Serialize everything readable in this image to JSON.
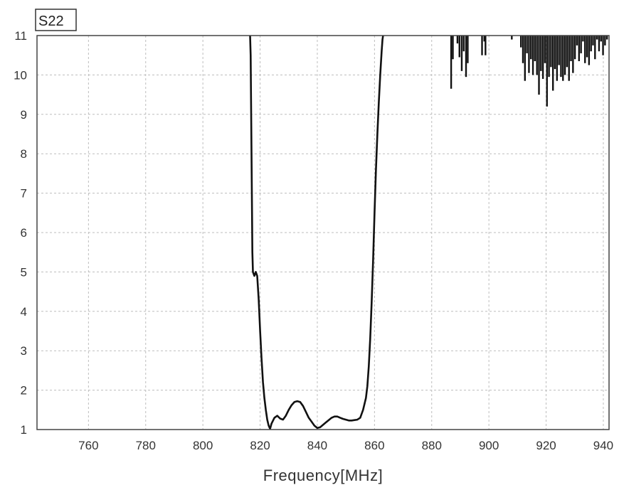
{
  "chart_data": {
    "type": "line",
    "title": "S22",
    "xlabel": "Frequency[MHz]",
    "ylabel": "",
    "xlim": [
      742,
      942
    ],
    "ylim": [
      1,
      11
    ],
    "xticks": [
      760,
      780,
      800,
      820,
      840,
      860,
      880,
      900,
      920,
      940
    ],
    "yticks": [
      1,
      2,
      3,
      4,
      5,
      6,
      7,
      8,
      9,
      10,
      11
    ],
    "grid": true,
    "series": [
      {
        "color": "#111111",
        "x": [
          816.5,
          816.7,
          817.0,
          817.3,
          817.5,
          818.0,
          818.5,
          819.0,
          819.5,
          820.0,
          820.5,
          821.0,
          821.5,
          822.0,
          822.5,
          823.0,
          823.5,
          824.0,
          825.0,
          826.0,
          827.0,
          828.0,
          829.0,
          830.0,
          831.0,
          832.0,
          833.0,
          834.0,
          835.0,
          836.0,
          837.0,
          838.0,
          839.0,
          840.0,
          841.0,
          842.0,
          843.0,
          844.0,
          845.0,
          846.0,
          847.0,
          848.0,
          849.0,
          850.0,
          851.0,
          852.0,
          853.0,
          854.0,
          855.0,
          856.0,
          857.0,
          857.5,
          858.0,
          858.5,
          859.0,
          859.5,
          860.0,
          860.5,
          861.0,
          861.5,
          862.0,
          862.5,
          862.8,
          863.0
        ],
        "y": [
          11.0,
          10.5,
          8.0,
          5.5,
          5.0,
          4.9,
          5.0,
          4.9,
          4.3,
          3.5,
          2.8,
          2.2,
          1.8,
          1.5,
          1.25,
          1.1,
          1.02,
          1.15,
          1.3,
          1.35,
          1.28,
          1.25,
          1.35,
          1.5,
          1.62,
          1.7,
          1.72,
          1.7,
          1.6,
          1.45,
          1.3,
          1.2,
          1.1,
          1.04,
          1.06,
          1.12,
          1.18,
          1.24,
          1.3,
          1.33,
          1.33,
          1.3,
          1.27,
          1.25,
          1.23,
          1.23,
          1.24,
          1.25,
          1.3,
          1.5,
          1.8,
          2.1,
          2.6,
          3.3,
          4.2,
          5.3,
          6.5,
          7.6,
          8.5,
          9.3,
          10.0,
          10.6,
          10.9,
          11.0
        ]
      }
    ],
    "spikes": [
      {
        "x": 886.8,
        "y": 9.65
      },
      {
        "x": 887.4,
        "y": 10.4
      },
      {
        "x": 889.0,
        "y": 10.8
      },
      {
        "x": 889.7,
        "y": 10.45
      },
      {
        "x": 890.5,
        "y": 10.1
      },
      {
        "x": 891.2,
        "y": 10.6
      },
      {
        "x": 892.0,
        "y": 9.95
      },
      {
        "x": 892.6,
        "y": 10.3
      },
      {
        "x": 897.6,
        "y": 10.5
      },
      {
        "x": 898.4,
        "y": 10.85
      },
      {
        "x": 898.8,
        "y": 10.5
      },
      {
        "x": 908.0,
        "y": 10.9
      },
      {
        "x": 911.2,
        "y": 10.7
      },
      {
        "x": 911.9,
        "y": 10.3
      },
      {
        "x": 912.6,
        "y": 9.85
      },
      {
        "x": 913.3,
        "y": 10.55
      },
      {
        "x": 914.0,
        "y": 10.05
      },
      {
        "x": 914.7,
        "y": 10.4
      },
      {
        "x": 915.4,
        "y": 10.0
      },
      {
        "x": 916.1,
        "y": 10.35
      },
      {
        "x": 916.8,
        "y": 10.0
      },
      {
        "x": 917.5,
        "y": 9.5
      },
      {
        "x": 918.2,
        "y": 10.1
      },
      {
        "x": 918.9,
        "y": 9.9
      },
      {
        "x": 919.6,
        "y": 10.3
      },
      {
        "x": 920.3,
        "y": 9.2
      },
      {
        "x": 921.0,
        "y": 9.95
      },
      {
        "x": 921.7,
        "y": 10.2
      },
      {
        "x": 922.4,
        "y": 9.6
      },
      {
        "x": 923.1,
        "y": 10.15
      },
      {
        "x": 923.8,
        "y": 9.85
      },
      {
        "x": 924.5,
        "y": 10.25
      },
      {
        "x": 925.2,
        "y": 9.95
      },
      {
        "x": 925.9,
        "y": 9.85
      },
      {
        "x": 926.6,
        "y": 10.0
      },
      {
        "x": 927.3,
        "y": 10.2
      },
      {
        "x": 928.0,
        "y": 9.85
      },
      {
        "x": 928.7,
        "y": 10.35
      },
      {
        "x": 929.4,
        "y": 10.05
      },
      {
        "x": 930.1,
        "y": 10.4
      },
      {
        "x": 930.8,
        "y": 10.75
      },
      {
        "x": 931.5,
        "y": 10.35
      },
      {
        "x": 932.2,
        "y": 10.55
      },
      {
        "x": 932.9,
        "y": 10.85
      },
      {
        "x": 933.6,
        "y": 10.3
      },
      {
        "x": 934.3,
        "y": 10.45
      },
      {
        "x": 935.0,
        "y": 10.25
      },
      {
        "x": 935.7,
        "y": 10.6
      },
      {
        "x": 936.4,
        "y": 10.75
      },
      {
        "x": 937.1,
        "y": 10.4
      },
      {
        "x": 937.8,
        "y": 10.9
      },
      {
        "x": 938.5,
        "y": 10.6
      },
      {
        "x": 939.2,
        "y": 10.85
      },
      {
        "x": 939.9,
        "y": 10.5
      },
      {
        "x": 940.6,
        "y": 10.75
      },
      {
        "x": 941.3,
        "y": 10.9
      }
    ]
  }
}
